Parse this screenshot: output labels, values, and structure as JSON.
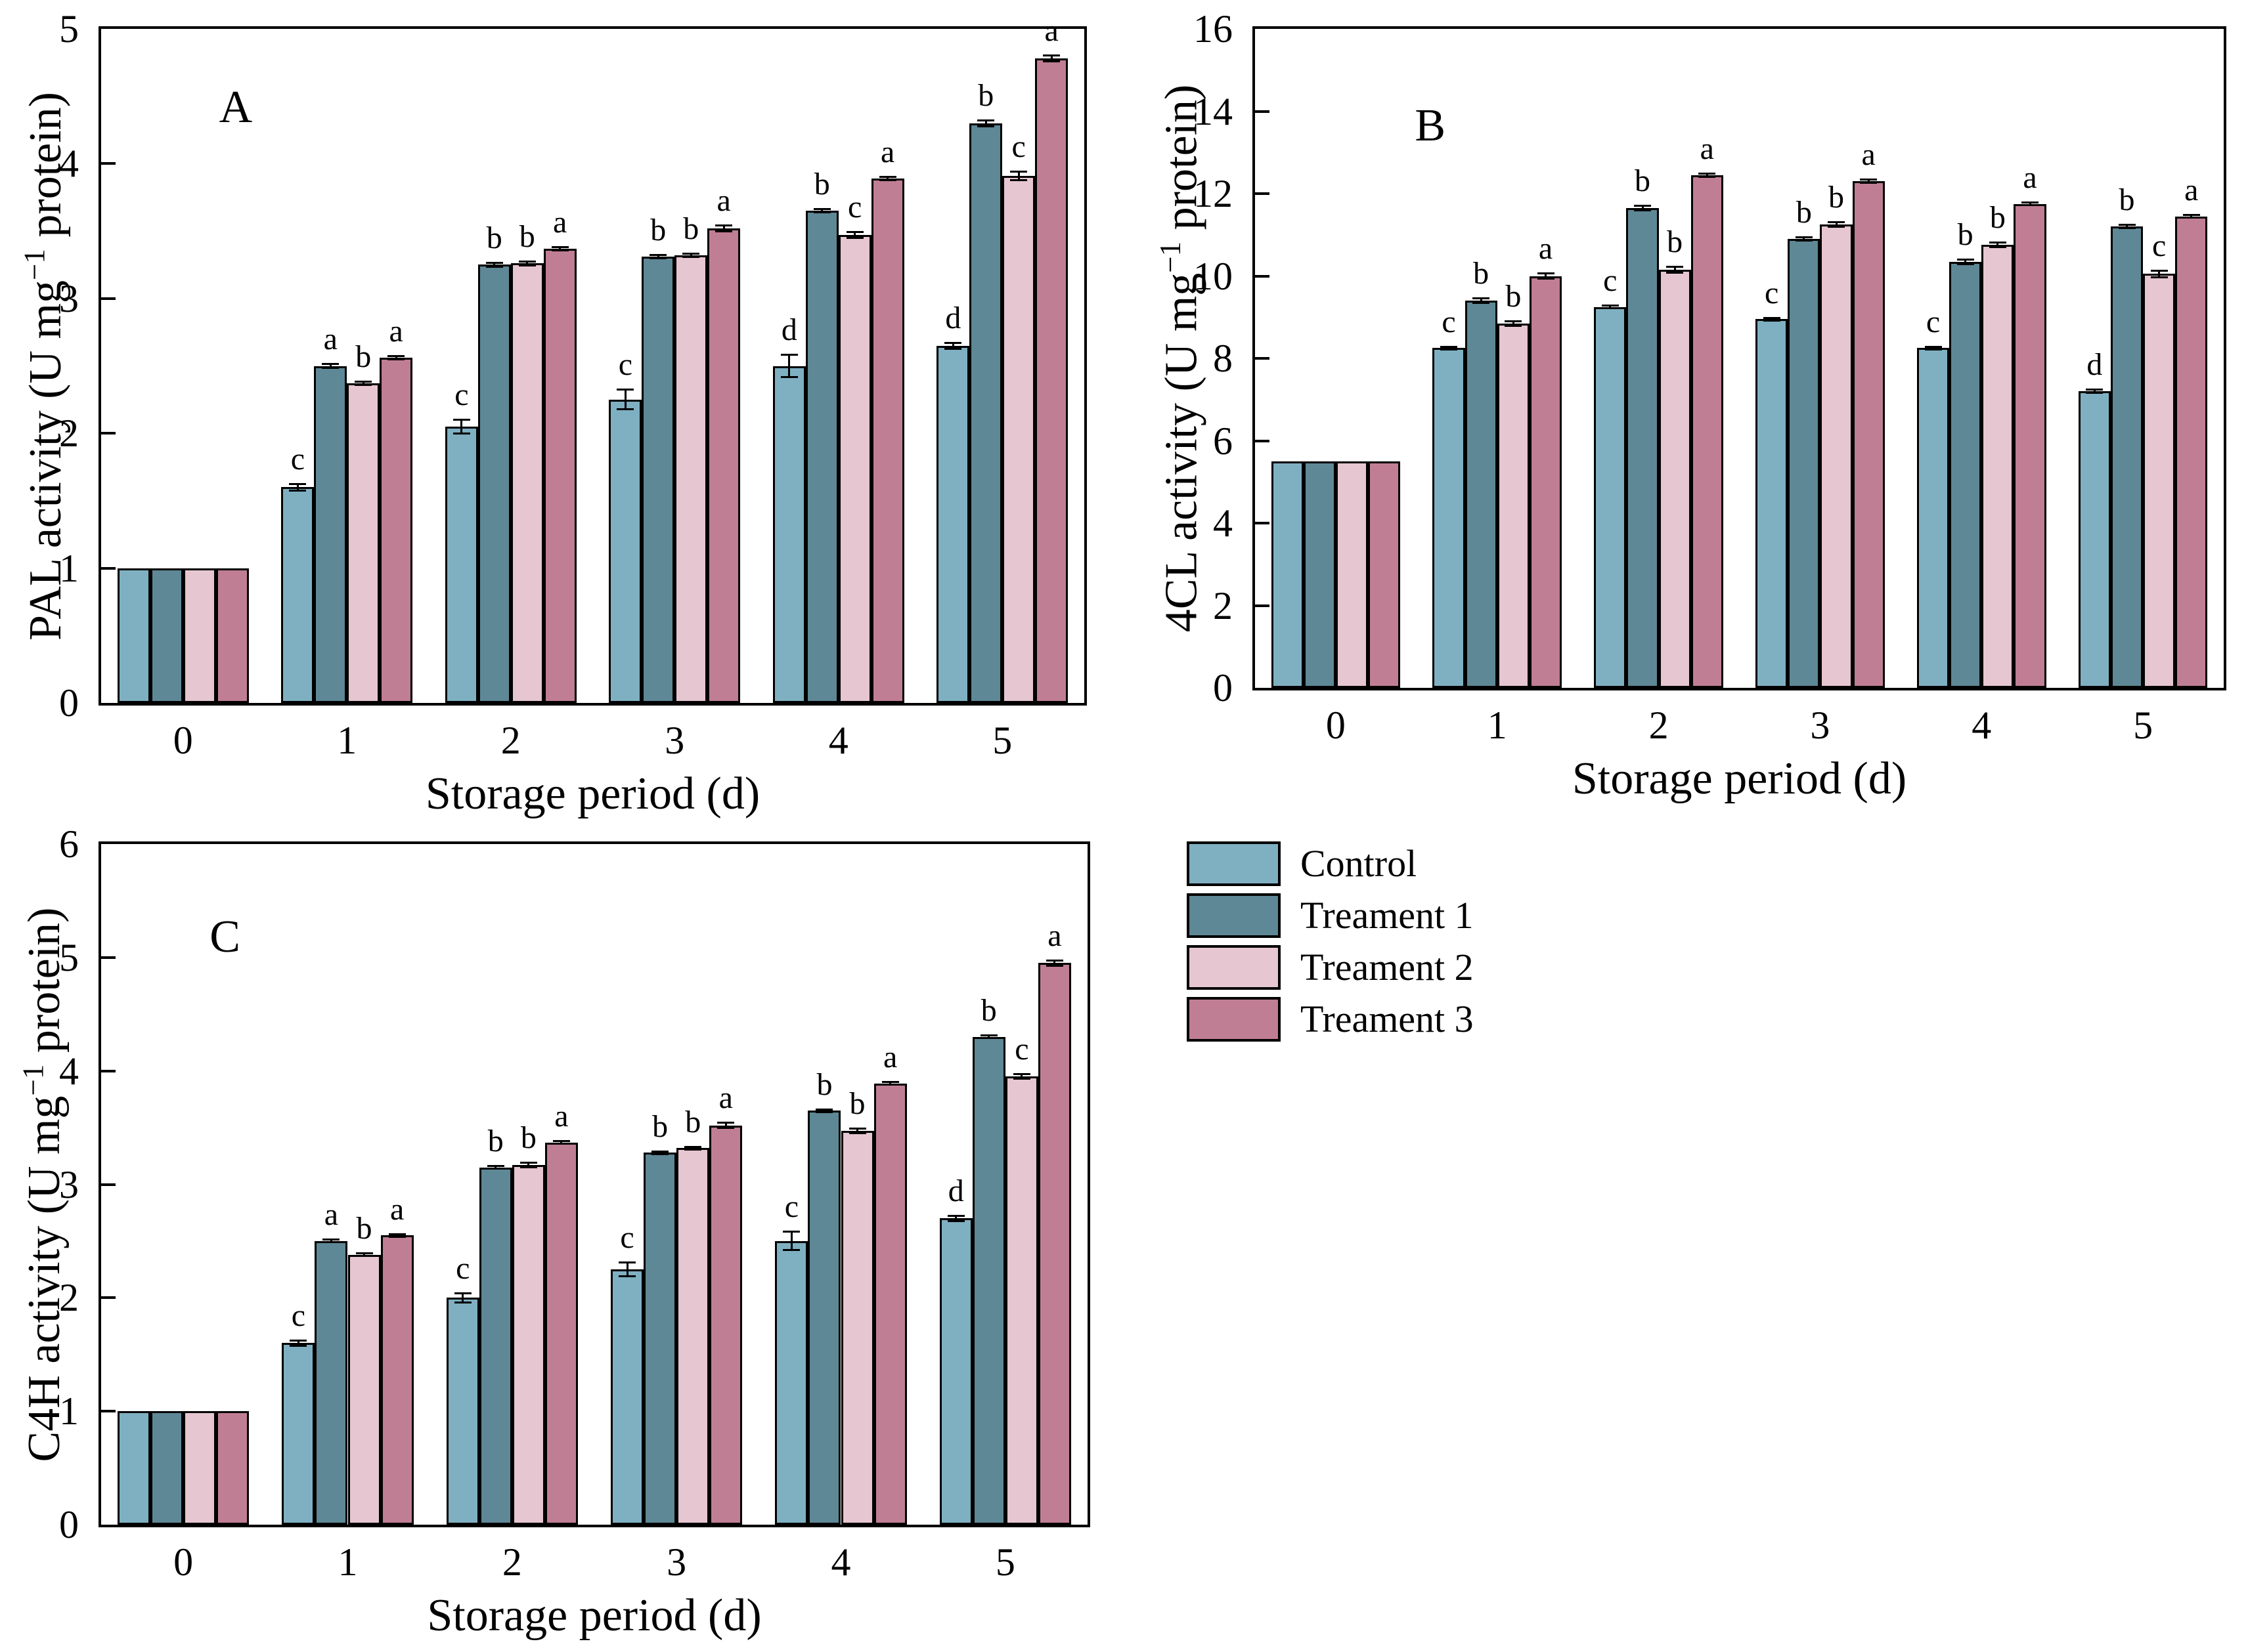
{
  "figure": {
    "background": "#ffffff",
    "series": [
      {
        "name": "Control",
        "color": "#7FB0C2"
      },
      {
        "name": "Treament 1",
        "color": "#5E8896"
      },
      {
        "name": "Treament 2",
        "color": "#E6C6D0"
      },
      {
        "name": "Treament 3",
        "color": "#C07E94"
      }
    ],
    "axis_color": "#000000",
    "error_bar_color": "#000000"
  },
  "legend": {
    "items": [
      "Control",
      "Treament 1",
      "Treament 2",
      "Treament 3"
    ],
    "position": "below-right-panel"
  },
  "chart_data": [
    {
      "id": "A",
      "type": "bar",
      "panel_label": "A",
      "xlabel": "Storage period (d)",
      "ylabel_prefix": "PAL activity (U mg",
      "ylabel_sup": "−1",
      "ylabel_suffix": " protein)",
      "categories": [
        "0",
        "1",
        "2",
        "3",
        "4",
        "5"
      ],
      "ylim": [
        0,
        5
      ],
      "yticks": [
        0,
        1,
        2,
        3,
        4,
        5
      ],
      "grid": false,
      "series": [
        {
          "name": "Control",
          "values": [
            1.0,
            1.6,
            2.05,
            2.25,
            2.5,
            2.65
          ],
          "errors": [
            0,
            0.03,
            0.06,
            0.08,
            0.09,
            0.03
          ],
          "letters": [
            "",
            "c",
            "c",
            "c",
            "d",
            "d"
          ]
        },
        {
          "name": "Treament 1",
          "values": [
            1.0,
            2.5,
            3.25,
            3.31,
            3.65,
            4.3
          ],
          "errors": [
            0,
            0.02,
            0.02,
            0.02,
            0.02,
            0.03
          ],
          "letters": [
            "",
            "a",
            "b",
            "b",
            "b",
            "b"
          ]
        },
        {
          "name": "Treament 2",
          "values": [
            1.0,
            2.37,
            3.26,
            3.32,
            3.47,
            3.91
          ],
          "errors": [
            0,
            0.02,
            0.02,
            0.02,
            0.03,
            0.04
          ],
          "letters": [
            "",
            "b",
            "b",
            "b",
            "c",
            "c"
          ]
        },
        {
          "name": "Treament 3",
          "values": [
            1.0,
            2.56,
            3.37,
            3.52,
            3.89,
            4.78
          ],
          "errors": [
            0,
            0.02,
            0.02,
            0.03,
            0.02,
            0.03
          ],
          "letters": [
            "",
            "a",
            "a",
            "a",
            "a",
            "a"
          ]
        }
      ]
    },
    {
      "id": "B",
      "type": "bar",
      "panel_label": "B",
      "xlabel": "Storage period (d)",
      "ylabel_prefix": "4CL activity (U mg",
      "ylabel_sup": "−1",
      "ylabel_suffix": " protein)",
      "categories": [
        "0",
        "1",
        "2",
        "3",
        "4",
        "5"
      ],
      "ylim": [
        0,
        16
      ],
      "yticks": [
        0,
        2,
        4,
        6,
        8,
        10,
        12,
        14,
        16
      ],
      "grid": false,
      "series": [
        {
          "name": "Control",
          "values": [
            5.5,
            8.25,
            9.25,
            8.95,
            8.25,
            7.2
          ],
          "errors": [
            0,
            0.06,
            0.06,
            0.06,
            0.06,
            0.06
          ],
          "letters": [
            "",
            "c",
            "c",
            "c",
            "c",
            "d"
          ]
        },
        {
          "name": "Treament 1",
          "values": [
            5.5,
            9.4,
            11.65,
            10.9,
            10.35,
            11.2
          ],
          "errors": [
            0,
            0.08,
            0.08,
            0.06,
            0.08,
            0.06
          ],
          "letters": [
            "",
            "b",
            "b",
            "b",
            "b",
            "b"
          ]
        },
        {
          "name": "Treament 2",
          "values": [
            5.5,
            8.85,
            10.15,
            11.25,
            10.75,
            10.05
          ],
          "errors": [
            0,
            0.08,
            0.1,
            0.08,
            0.08,
            0.1
          ],
          "letters": [
            "",
            "b",
            "b",
            "b",
            "b",
            "c"
          ]
        },
        {
          "name": "Treament 3",
          "values": [
            5.5,
            10.0,
            12.45,
            12.3,
            11.75,
            11.45
          ],
          "errors": [
            0,
            0.08,
            0.06,
            0.06,
            0.06,
            0.06
          ],
          "letters": [
            "",
            "a",
            "a",
            "a",
            "a",
            "a"
          ]
        }
      ]
    },
    {
      "id": "C",
      "type": "bar",
      "panel_label": "C",
      "xlabel": "Storage period (d)",
      "ylabel_prefix": "C4H activity (U mg",
      "ylabel_sup": "−1",
      "ylabel_suffix": " protein)",
      "categories": [
        "0",
        "1",
        "2",
        "3",
        "4",
        "5"
      ],
      "ylim": [
        0,
        6
      ],
      "yticks": [
        0,
        1,
        2,
        3,
        4,
        5,
        6
      ],
      "grid": false,
      "series": [
        {
          "name": "Control",
          "values": [
            1.0,
            1.6,
            2.0,
            2.25,
            2.5,
            2.7
          ],
          "errors": [
            0,
            0.03,
            0.05,
            0.07,
            0.09,
            0.03
          ],
          "letters": [
            "",
            "c",
            "c",
            "c",
            "c",
            "d"
          ]
        },
        {
          "name": "Treament 1",
          "values": [
            1.0,
            2.5,
            3.15,
            3.28,
            3.65,
            4.3
          ],
          "errors": [
            0,
            0.02,
            0.02,
            0.02,
            0.02,
            0.02
          ],
          "letters": [
            "",
            "a",
            "b",
            "b",
            "b",
            "b"
          ]
        },
        {
          "name": "Treament 2",
          "values": [
            1.0,
            2.38,
            3.17,
            3.32,
            3.47,
            3.95
          ],
          "errors": [
            0,
            0.02,
            0.03,
            0.02,
            0.03,
            0.03
          ],
          "letters": [
            "",
            "b",
            "b",
            "b",
            "b",
            "c"
          ]
        },
        {
          "name": "Treament 3",
          "values": [
            1.0,
            2.55,
            3.37,
            3.52,
            3.89,
            4.95
          ],
          "errors": [
            0,
            0.02,
            0.02,
            0.03,
            0.02,
            0.03
          ],
          "letters": [
            "",
            "a",
            "a",
            "a",
            "a",
            "a"
          ]
        }
      ]
    }
  ]
}
